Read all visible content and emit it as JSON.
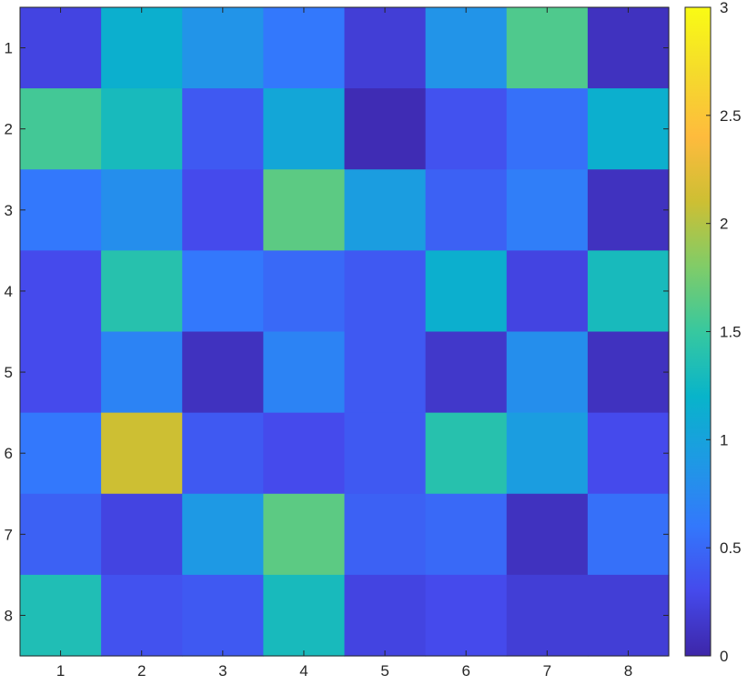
{
  "chart_data": {
    "type": "heatmap",
    "title": "",
    "xlabel": "",
    "ylabel": "",
    "x_ticks": [
      "1",
      "2",
      "3",
      "4",
      "5",
      "6",
      "7",
      "8"
    ],
    "y_ticks": [
      "1",
      "2",
      "3",
      "4",
      "5",
      "6",
      "7",
      "8"
    ],
    "values": [
      [
        0.25,
        1.15,
        0.85,
        0.6,
        0.2,
        0.85,
        1.6,
        0.1
      ],
      [
        1.55,
        1.3,
        0.4,
        1.05,
        0.05,
        0.35,
        0.55,
        1.15
      ],
      [
        0.6,
        0.8,
        0.3,
        1.65,
        0.95,
        0.45,
        0.65,
        0.1
      ],
      [
        0.3,
        1.4,
        0.6,
        0.5,
        0.4,
        1.15,
        0.25,
        1.3
      ],
      [
        0.3,
        0.7,
        0.1,
        0.7,
        0.4,
        0.15,
        0.8,
        0.1
      ],
      [
        0.6,
        2.1,
        0.4,
        0.3,
        0.4,
        1.4,
        0.95,
        0.3
      ],
      [
        0.45,
        0.25,
        0.9,
        1.65,
        0.45,
        0.5,
        0.1,
        0.55
      ],
      [
        1.35,
        0.35,
        0.4,
        1.3,
        0.25,
        0.3,
        0.2,
        0.2
      ]
    ],
    "colorbar": {
      "colormap": "parula",
      "range": [
        0,
        3
      ],
      "ticks": [
        "0",
        "0.5",
        "1",
        "1.5",
        "2",
        "2.5",
        "3"
      ]
    }
  }
}
